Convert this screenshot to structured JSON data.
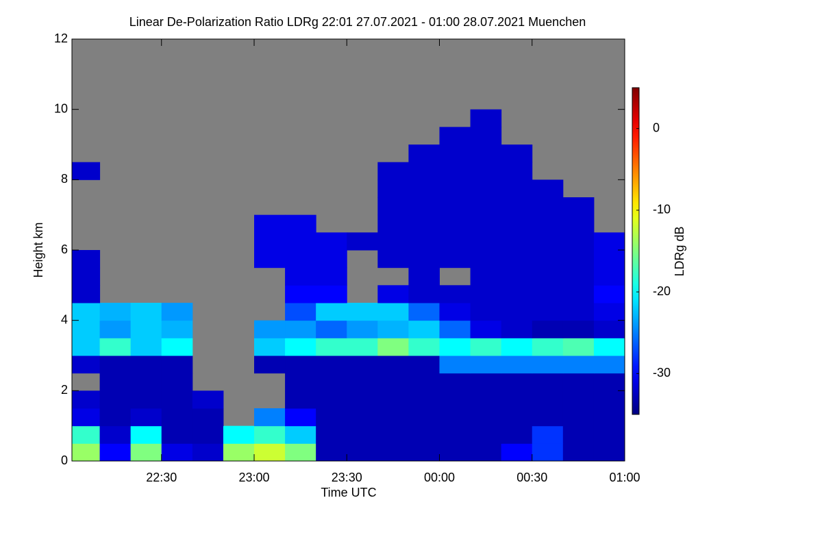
{
  "chart_data": {
    "type": "heatmap",
    "title": "Linear De-Polarization Ratio LDRg   22:01 27.07.2021 - 01:00 28.07.2021 Muenchen",
    "x_label": "Time UTC",
    "y_label": "Height km",
    "colorbar_label": "LDRg dB",
    "xlim": [
      "22:01",
      "01:00"
    ],
    "xticks": [
      "22:30",
      "23:00",
      "23:30",
      "00:00",
      "00:30",
      "01:00"
    ],
    "ylim": [
      0,
      12
    ],
    "yticks": [
      0,
      2,
      4,
      6,
      8,
      10,
      12
    ],
    "zlim": [
      -35,
      5
    ],
    "zticks": [
      -30,
      -20,
      -10,
      0
    ],
    "colormap": "jet",
    "missing_color": "#808080",
    "x_bins": [
      "22:01",
      "22:10",
      "22:20",
      "22:30",
      "22:40",
      "22:50",
      "23:00",
      "23:10",
      "23:20",
      "23:30",
      "23:40",
      "23:50",
      "00:00",
      "00:10",
      "00:20",
      "00:30",
      "00:40",
      "00:50",
      "01:00"
    ],
    "y_bins": [
      0,
      0.5,
      1,
      1.5,
      2,
      2.5,
      3,
      3.5,
      4,
      4.5,
      5,
      5.5,
      6,
      6.5,
      7,
      7.5,
      8,
      8.5,
      9,
      9.5,
      10
    ],
    "z": [
      [
        -14,
        -30,
        -15,
        -31,
        -32,
        -14,
        -12,
        -15,
        -33,
        -33,
        -33,
        -33,
        -33,
        -33,
        -30,
        -28,
        -33,
        -33
      ],
      [
        -18,
        -32,
        -20,
        -33,
        -33,
        -20,
        -18,
        -22,
        -33,
        -33,
        -33,
        -33,
        -33,
        -33,
        -33,
        -28,
        -33,
        -33
      ],
      [
        -31,
        -33,
        -32,
        -33,
        -33,
        null,
        -25,
        -30,
        -33,
        -33,
        -33,
        -33,
        -33,
        -33,
        -33,
        -33,
        -33,
        -33
      ],
      [
        -32,
        -33,
        -33,
        -33,
        -32,
        null,
        null,
        -33,
        -33,
        -33,
        -33,
        -33,
        -33,
        -33,
        -33,
        -33,
        -33,
        -33
      ],
      [
        null,
        -33,
        -33,
        -33,
        null,
        null,
        null,
        -33,
        -33,
        -33,
        -33,
        -33,
        -33,
        -33,
        -33,
        -33,
        -33,
        -33
      ],
      [
        -32,
        -33,
        -33,
        -33,
        null,
        null,
        -33,
        -33,
        -33,
        -33,
        -33,
        -33,
        -25,
        -25,
        -25,
        -25,
        -25,
        -25
      ],
      [
        -22,
        -18,
        -22,
        -20,
        null,
        null,
        -22,
        -20,
        -18,
        -18,
        -15,
        -18,
        -20,
        -18,
        -20,
        -18,
        -17,
        -20
      ],
      [
        -22,
        -24,
        -22,
        -23,
        null,
        null,
        -24,
        -24,
        -26,
        -24,
        -23,
        -22,
        -26,
        -31,
        -32,
        -33,
        -33,
        -32
      ],
      [
        -22,
        -23,
        -22,
        -24,
        null,
        null,
        null,
        -27,
        -22,
        -22,
        -22,
        -26,
        -31,
        -32,
        -32,
        -32,
        -32,
        -31
      ],
      [
        -32,
        null,
        null,
        null,
        null,
        null,
        null,
        -30,
        -30,
        null,
        -31,
        -32,
        -32,
        -32,
        -32,
        -32,
        -32,
        -30
      ],
      [
        -32,
        null,
        null,
        null,
        null,
        null,
        null,
        -31,
        -31,
        null,
        null,
        -32,
        null,
        -32,
        -32,
        -32,
        -32,
        -31
      ],
      [
        -32,
        null,
        null,
        null,
        null,
        null,
        -31,
        -31,
        -31,
        null,
        -32,
        -32,
        -32,
        -32,
        -32,
        -32,
        -32,
        -31
      ],
      [
        null,
        null,
        null,
        null,
        null,
        null,
        -31,
        -31,
        -31,
        -32,
        -32,
        -32,
        -32,
        -32,
        -32,
        -32,
        -32,
        -31
      ],
      [
        null,
        null,
        null,
        null,
        null,
        null,
        -31,
        -31,
        null,
        null,
        -32,
        -32,
        -32,
        -32,
        -32,
        -32,
        -32,
        null
      ],
      [
        null,
        null,
        null,
        null,
        null,
        null,
        null,
        null,
        null,
        null,
        -32,
        -32,
        -32,
        -32,
        -32,
        -32,
        -32,
        null
      ],
      [
        null,
        null,
        null,
        null,
        null,
        null,
        null,
        null,
        null,
        null,
        -32,
        -32,
        -32,
        -32,
        -32,
        -32,
        null,
        null
      ],
      [
        -32,
        null,
        null,
        null,
        null,
        null,
        null,
        null,
        null,
        null,
        -32,
        -32,
        -32,
        -32,
        -32,
        null,
        null,
        null
      ],
      [
        null,
        null,
        null,
        null,
        null,
        null,
        null,
        null,
        null,
        null,
        null,
        -32,
        -32,
        -32,
        -32,
        null,
        null,
        null
      ],
      [
        null,
        null,
        null,
        null,
        null,
        null,
        null,
        null,
        null,
        null,
        null,
        null,
        -32,
        -32,
        null,
        null,
        null,
        null
      ],
      [
        null,
        null,
        null,
        null,
        null,
        null,
        null,
        null,
        null,
        null,
        null,
        null,
        null,
        -32,
        null,
        null,
        null,
        null
      ]
    ]
  }
}
